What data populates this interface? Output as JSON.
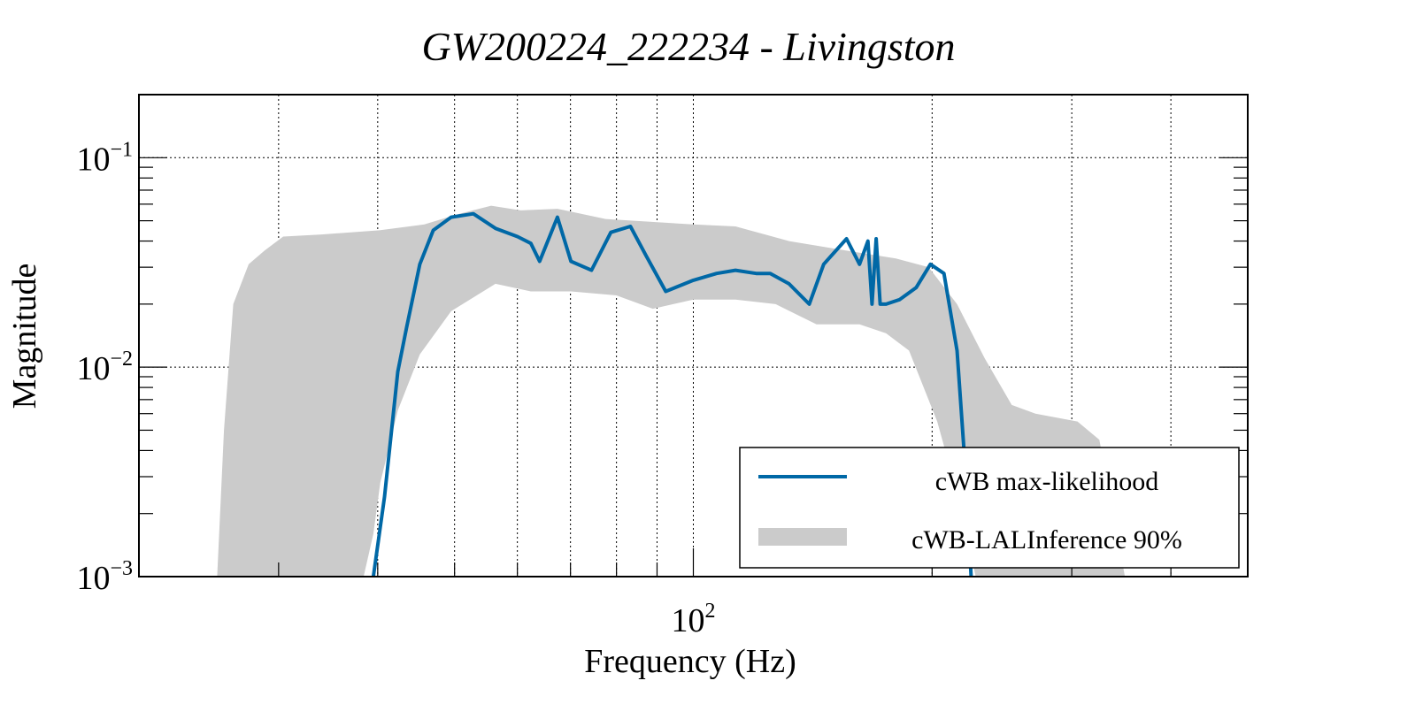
{
  "chart_data": {
    "type": "line",
    "title": "GW200224_222234 - Livingston",
    "xlabel": "Frequency (Hz)",
    "ylabel": "Magnitude",
    "xscale": "log",
    "yscale": "log",
    "xlim": [
      20,
      500
    ],
    "ylim": [
      0.001,
      0.2
    ],
    "grid": true,
    "x_gridlines": [
      30,
      40,
      50,
      60,
      70,
      80,
      90,
      100,
      200,
      300,
      400
    ],
    "y_gridlines": [
      0.1,
      0.01
    ],
    "x_ticks": [
      {
        "value": 100,
        "base": "10",
        "exp": "2"
      }
    ],
    "y_ticks": [
      {
        "value": 0.1,
        "base": "10",
        "exp": "−1"
      },
      {
        "value": 0.01,
        "base": "10",
        "exp": "−2"
      },
      {
        "value": 0.001,
        "base": "10",
        "exp": "−3"
      }
    ],
    "legend": {
      "position": "bottom-right",
      "entries": [
        {
          "label": "cWB max-likelihood",
          "type": "line",
          "color": "#0068a6"
        },
        {
          "label": "cWB-LALInference 90%",
          "type": "band",
          "color": "#cbcbcb"
        }
      ]
    },
    "series": [
      {
        "name": "cWB-LALInference 90%",
        "kind": "band",
        "color": "#cbcbcb",
        "upper": {
          "x": [
            25.1,
            25.6,
            26.3,
            27.5,
            28.8,
            30.4,
            34,
            40.2,
            45.8,
            50.7,
            55.6,
            60.6,
            67.4,
            77.5,
            100,
            113,
            132,
            156,
            180,
            198,
            215,
            233,
            252,
            270,
            305,
            325,
            340,
            350
          ],
          "y": [
            0.001,
            0.005,
            0.02,
            0.031,
            0.036,
            0.042,
            0.043,
            0.045,
            0.048,
            0.054,
            0.059,
            0.056,
            0.057,
            0.051,
            0.048,
            0.047,
            0.04,
            0.036,
            0.033,
            0.03,
            0.02,
            0.011,
            0.0066,
            0.006,
            0.0055,
            0.0045,
            0.0018,
            0.001
          ]
        },
        "lower": {
          "x": [
            38.4,
            39.5,
            40.3,
            42.4,
            45.2,
            49.5,
            56.3,
            62.4,
            70.1,
            80,
            88.9,
            100,
            113,
            127,
            143,
            162,
            175,
            187,
            203,
            215,
            227
          ],
          "y": [
            0.001,
            0.0016,
            0.0028,
            0.0062,
            0.0115,
            0.0185,
            0.025,
            0.023,
            0.023,
            0.022,
            0.019,
            0.021,
            0.021,
            0.02,
            0.016,
            0.016,
            0.0145,
            0.012,
            0.0055,
            0.0025,
            0.001
          ]
        }
      },
      {
        "name": "cWB max-likelihood",
        "kind": "line",
        "color": "#0068a6",
        "x": [
          39.5,
          40.8,
          42.4,
          43.5,
          45.2,
          47.0,
          49.5,
          52.8,
          56.3,
          60.0,
          62.4,
          64.0,
          67.4,
          70.1,
          74.4,
          78.7,
          83.3,
          87.2,
          92.3,
          100,
          107,
          113,
          120,
          125,
          132,
          140,
          146,
          156,
          162,
          166,
          168,
          170,
          172,
          175,
          182,
          191,
          199,
          207,
          215,
          221,
          224
        ],
        "y": [
          0.001,
          0.0024,
          0.0095,
          0.0155,
          0.031,
          0.045,
          0.052,
          0.054,
          0.046,
          0.042,
          0.039,
          0.032,
          0.052,
          0.032,
          0.029,
          0.044,
          0.047,
          0.034,
          0.023,
          0.026,
          0.028,
          0.029,
          0.028,
          0.028,
          0.025,
          0.02,
          0.031,
          0.041,
          0.031,
          0.04,
          0.02,
          0.041,
          0.02,
          0.02,
          0.021,
          0.024,
          0.031,
          0.028,
          0.012,
          0.0027,
          0.001
        ]
      }
    ]
  }
}
